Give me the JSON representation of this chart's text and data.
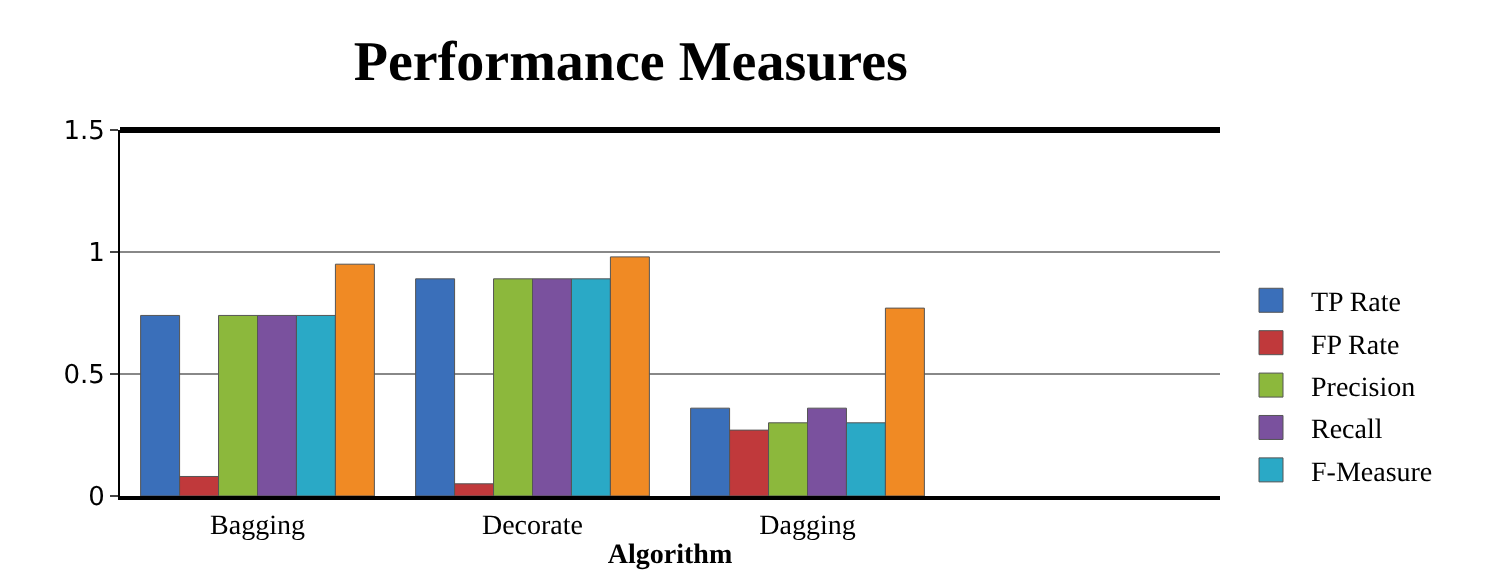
{
  "chart_data": {
    "type": "bar",
    "title": "Performance Measures",
    "xlabel": "Algorithm",
    "categories": [
      "Bagging",
      "Decorate",
      "Dagging",
      null
    ],
    "series": [
      {
        "name": "TP Rate",
        "color": "#3a6fba",
        "values": [
          0.74,
          0.89,
          0.36,
          null
        ]
      },
      {
        "name": "FP Rate",
        "color": "#c0393b",
        "values": [
          0.08,
          0.05,
          0.27,
          null
        ]
      },
      {
        "name": "Precision",
        "color": "#8cb83c",
        "values": [
          0.74,
          0.89,
          0.3,
          null
        ]
      },
      {
        "name": "Recall",
        "color": "#7a519e",
        "values": [
          0.74,
          0.89,
          0.36,
          null
        ]
      },
      {
        "name": "F-Measure",
        "color": "#2aa9c6",
        "values": [
          0.74,
          0.89,
          0.3,
          null
        ]
      },
      {
        "color": "#f08a24",
        "values": [
          0.95,
          0.98,
          0.77,
          null
        ]
      }
    ],
    "ylim": [
      0,
      1.5
    ],
    "yticks": [
      0,
      0.5,
      1,
      1.5
    ],
    "grid": "y",
    "legend": "right"
  }
}
